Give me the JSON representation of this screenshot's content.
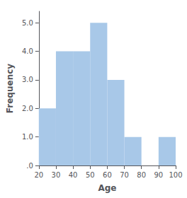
{
  "chart_data": {
    "type": "histogram",
    "bins": [
      20,
      30,
      40,
      50,
      60,
      70,
      80,
      90,
      100
    ],
    "values": [
      2,
      4,
      4,
      5,
      3,
      1,
      0,
      1
    ],
    "color": "#a8c8e8",
    "xlabel": "Age",
    "ylabel": "Frequency",
    "xlim": [
      20,
      100
    ],
    "ylim": [
      0,
      5.4
    ],
    "xticks": [
      20,
      30,
      40,
      50,
      60,
      70,
      80,
      90,
      100
    ],
    "yticks": [
      {
        "value": 0,
        "label": ".0"
      },
      {
        "value": 1,
        "label": "1.0"
      },
      {
        "value": 2,
        "label": "2.0"
      },
      {
        "value": 3,
        "label": "3.0"
      },
      {
        "value": 4,
        "label": "4.0"
      },
      {
        "value": 5,
        "label": "5.0"
      }
    ],
    "grid": false
  }
}
